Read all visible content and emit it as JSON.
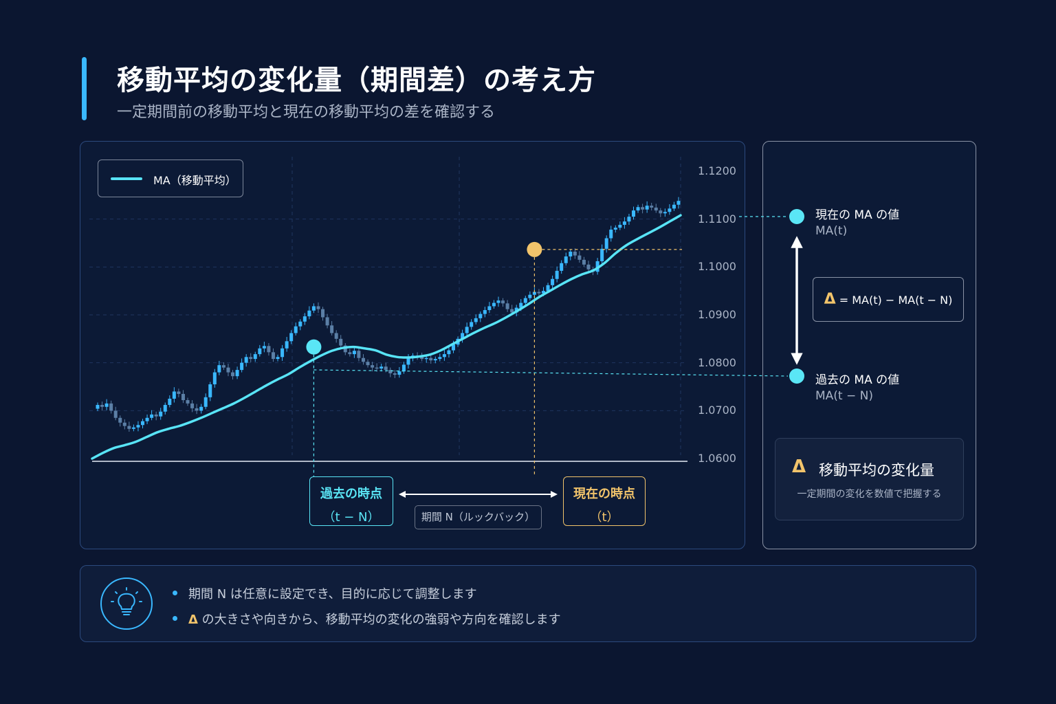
{
  "header": {
    "title": "移動平均の変化量（期間差）の考え方",
    "subtitle": "一定期間前の移動平均と現在の移動平均の差を確認する"
  },
  "colors": {
    "background": "#0b1630",
    "accent": "#3ab8ff",
    "ma_line": "#58e4f6",
    "bull_candle": "#3ab8ff",
    "bear_candle": "#5b7fa6",
    "past_marker": "#5ae6f6",
    "current_marker": "#f2c46b"
  },
  "legend": {
    "label": "MA（移動平均）"
  },
  "markers": {
    "past": {
      "line1": "過去の時点",
      "line2": "（t − N）"
    },
    "current": {
      "line1": "現在の時点",
      "line2": "（t）"
    },
    "period": "期間 N（ルックバック）"
  },
  "side": {
    "current_label": "現在の MA の値",
    "current_sub": "MA(t)",
    "formula_symbol": "Δ",
    "formula_text": " = MA(t) − MA(t − N)",
    "past_label": "過去の MA の値",
    "past_sub": "MA(t − N)",
    "info_icon": "Δ",
    "info_title": "移動平均の変化量",
    "info_desc": "一定期間の変化を数値で把握する"
  },
  "notes": {
    "icon": "lightbulb-icon",
    "bullets": [
      {
        "text": "期間 N は任意に設定でき、目的に応じて調整します"
      },
      {
        "symbol": "Δ",
        "text": " の大きさや向きから、移動平均の変化の強弱や方向を確認します"
      }
    ]
  },
  "chart_data": {
    "type": "line",
    "ylim": [
      1.06,
      1.12
    ],
    "y_ticks": [
      "1.1200",
      "1.1100",
      "1.1000",
      "1.0900",
      "1.0800",
      "1.0700",
      "1.0600"
    ],
    "grid": true,
    "legend_position": "top-left",
    "past_index": 48,
    "current_index": 97,
    "series": [
      {
        "name": "MA（移動平均）",
        "type": "line",
        "values": [
          1.06,
          1.0612,
          1.0622,
          1.0628,
          1.0635,
          1.0645,
          1.0655,
          1.0662,
          1.0668,
          1.0676,
          1.0685,
          1.0695,
          1.0705,
          1.0715,
          1.0727,
          1.074,
          1.0753,
          1.0765,
          1.0776,
          1.079,
          1.0803,
          1.0815,
          1.0825,
          1.0831,
          1.0833,
          1.083,
          1.0826,
          1.0817,
          1.0812,
          1.0811,
          1.0813,
          1.0817,
          1.0826,
          1.0838,
          1.085,
          1.0862,
          1.0873,
          1.0883,
          1.0895,
          1.0908,
          1.0922,
          1.0937,
          1.095,
          1.0963,
          1.0975,
          1.0985,
          1.0993,
          1.1008,
          1.1028,
          1.1045,
          1.1058,
          1.107,
          1.1082,
          1.1095,
          1.1108
        ]
      },
      {
        "name": "",
        "type": "candlestick",
        "values": [
          1.0712,
          1.0708,
          1.0715,
          1.07,
          1.0685,
          1.0675,
          1.0668,
          1.0662,
          1.0665,
          1.067,
          1.0678,
          1.0685,
          1.0692,
          1.0688,
          1.0698,
          1.0712,
          1.0725,
          1.074,
          1.0735,
          1.0722,
          1.0715,
          1.0705,
          1.07,
          1.0708,
          1.0728,
          1.0755,
          1.078,
          1.0795,
          1.079,
          1.078,
          1.0772,
          1.0785,
          1.08,
          1.0812,
          1.0808,
          1.0818,
          1.083,
          1.0835,
          1.0822,
          1.0808,
          1.0812,
          1.083,
          1.0845,
          1.0862,
          1.0876,
          1.0886,
          1.0897,
          1.0909,
          1.0918,
          1.0912,
          1.0895,
          1.0878,
          1.0862,
          1.085,
          1.0836,
          1.0822,
          1.0818,
          1.0825,
          1.081,
          1.0802,
          1.0795,
          1.079,
          1.0788,
          1.0792,
          1.0785,
          1.0778,
          1.0775,
          1.0782,
          1.0796,
          1.081,
          1.0815,
          1.0812,
          1.0808,
          1.081,
          1.0805,
          1.0808,
          1.0812,
          1.0818,
          1.0826,
          1.0838,
          1.085,
          1.0862,
          1.0875,
          1.0885,
          1.0893,
          1.0902,
          1.091,
          1.0918,
          1.0925,
          1.093,
          1.0924,
          1.0912,
          1.0905,
          1.0915,
          1.0925,
          1.0935,
          1.0942,
          1.0948,
          1.0945,
          1.095,
          1.0962,
          1.0975,
          1.0992,
          1.1008,
          1.1022,
          1.1032,
          1.1024,
          1.1015,
          1.1005,
          1.0995,
          1.099,
          1.1012,
          1.1038,
          1.106,
          1.1078,
          1.1082,
          1.1088,
          1.1095,
          1.1105,
          1.1118,
          1.1125,
          1.112,
          1.1128,
          1.1124,
          1.1118,
          1.1112,
          1.1115,
          1.1122,
          1.113,
          1.1138
        ]
      }
    ]
  }
}
